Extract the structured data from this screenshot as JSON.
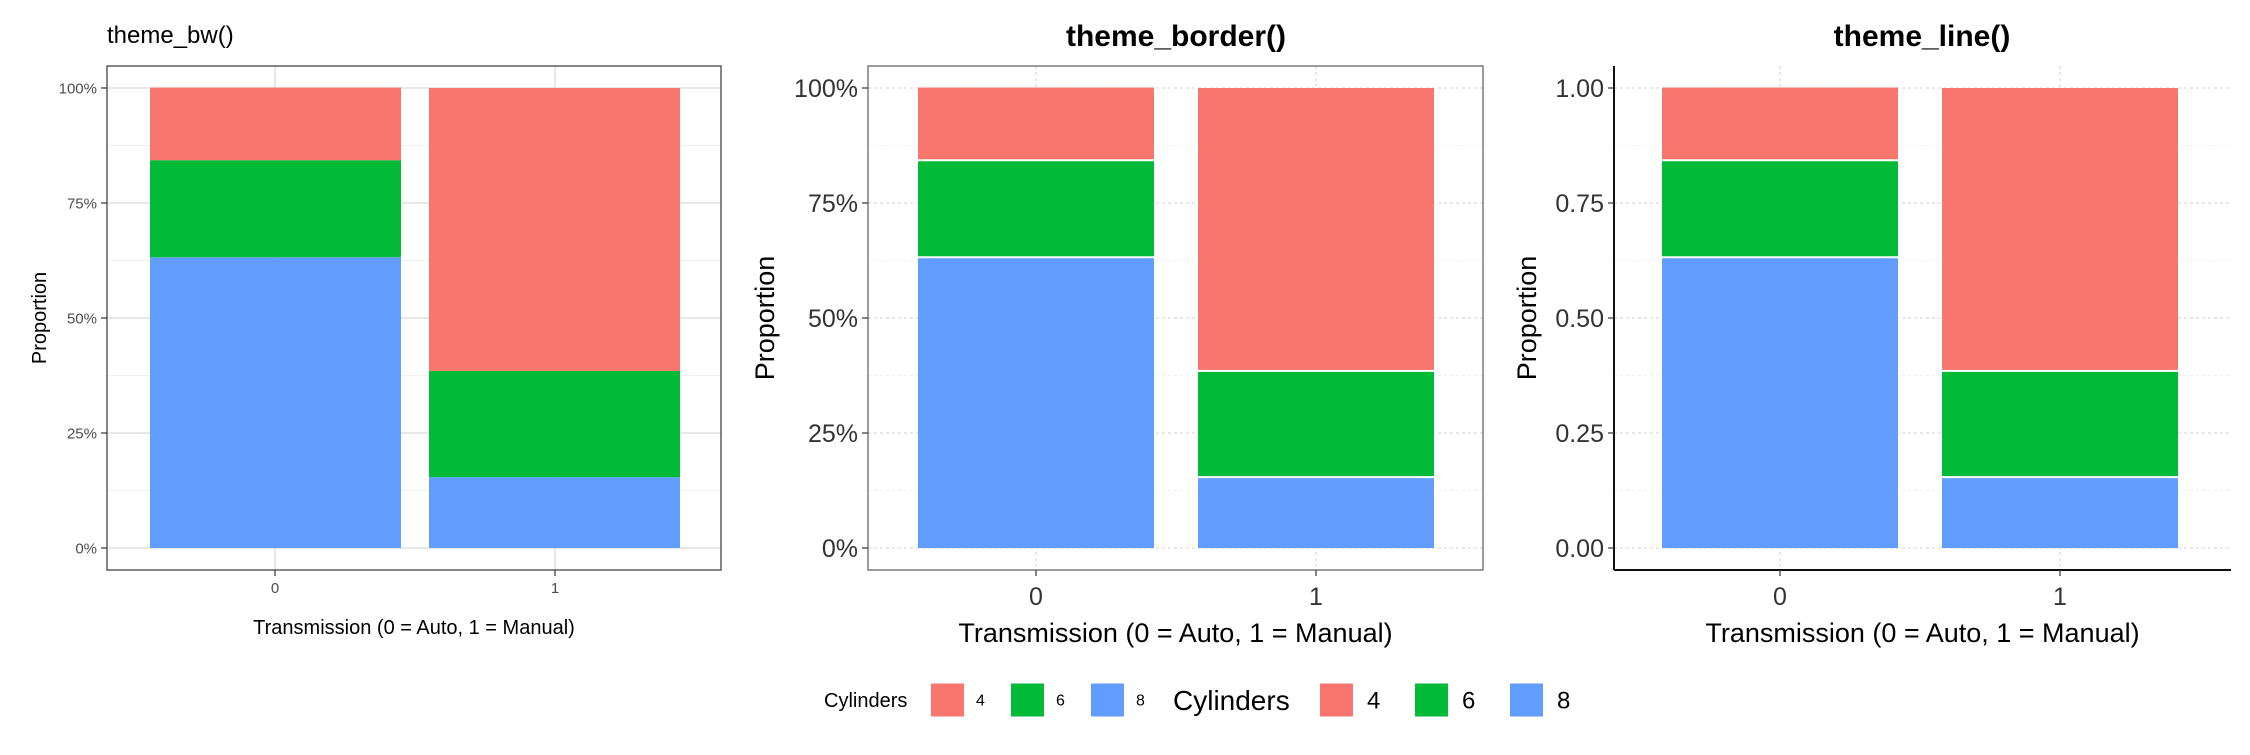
{
  "colors": {
    "cyl4": "#F8766D",
    "cyl6": "#00BA38",
    "cyl8": "#619CFF"
  },
  "panels": [
    {
      "title": "theme_bw()",
      "xlabel": "Transmission (0 = Auto, 1 = Manual)",
      "ylabel": "Proportion"
    },
    {
      "title": "theme_border()",
      "xlabel": "Transmission (0 = Auto, 1 = Manual)",
      "ylabel": "Proportion"
    },
    {
      "title": "theme_line()",
      "xlabel": "Transmission (0 = Auto, 1 = Manual)",
      "ylabel": "Proportion"
    }
  ],
  "legend_small": {
    "title": "Cylinders",
    "items": [
      "4",
      "6",
      "8"
    ]
  },
  "legend_large": {
    "title": "Cylinders",
    "items": [
      "4",
      "6",
      "8"
    ]
  },
  "chart_data": [
    {
      "type": "bar",
      "stacked": true,
      "title": "theme_bw()",
      "xlabel": "Transmission (0 = Auto, 1 = Manual)",
      "ylabel": "Proportion",
      "categories": [
        "0",
        "1"
      ],
      "series": [
        {
          "name": "8",
          "values": [
            0.632,
            0.154
          ]
        },
        {
          "name": "6",
          "values": [
            0.211,
            0.231
          ]
        },
        {
          "name": "4",
          "values": [
            0.158,
            0.615
          ]
        }
      ],
      "yticks": [
        "0%",
        "25%",
        "50%",
        "75%",
        "100%"
      ],
      "ylim": [
        0,
        1
      ],
      "grid": true
    },
    {
      "type": "bar",
      "stacked": true,
      "title": "theme_border()",
      "xlabel": "Transmission (0 = Auto, 1 = Manual)",
      "ylabel": "Proportion",
      "categories": [
        "0",
        "1"
      ],
      "series": [
        {
          "name": "8",
          "values": [
            0.632,
            0.154
          ]
        },
        {
          "name": "6",
          "values": [
            0.211,
            0.231
          ]
        },
        {
          "name": "4",
          "values": [
            0.158,
            0.615
          ]
        }
      ],
      "yticks": [
        "0%",
        "25%",
        "50%",
        "75%",
        "100%"
      ],
      "ylim": [
        0,
        1
      ],
      "grid": true
    },
    {
      "type": "bar",
      "stacked": true,
      "title": "theme_line()",
      "xlabel": "Transmission (0 = Auto, 1 = Manual)",
      "ylabel": "Proportion",
      "categories": [
        "0",
        "1"
      ],
      "series": [
        {
          "name": "8",
          "values": [
            0.632,
            0.154
          ]
        },
        {
          "name": "6",
          "values": [
            0.211,
            0.231
          ]
        },
        {
          "name": "4",
          "values": [
            0.158,
            0.615
          ]
        }
      ],
      "yticks": [
        "0.00",
        "0.25",
        "0.50",
        "0.75",
        "1.00"
      ],
      "ylim": [
        0,
        1
      ],
      "grid": true
    }
  ]
}
